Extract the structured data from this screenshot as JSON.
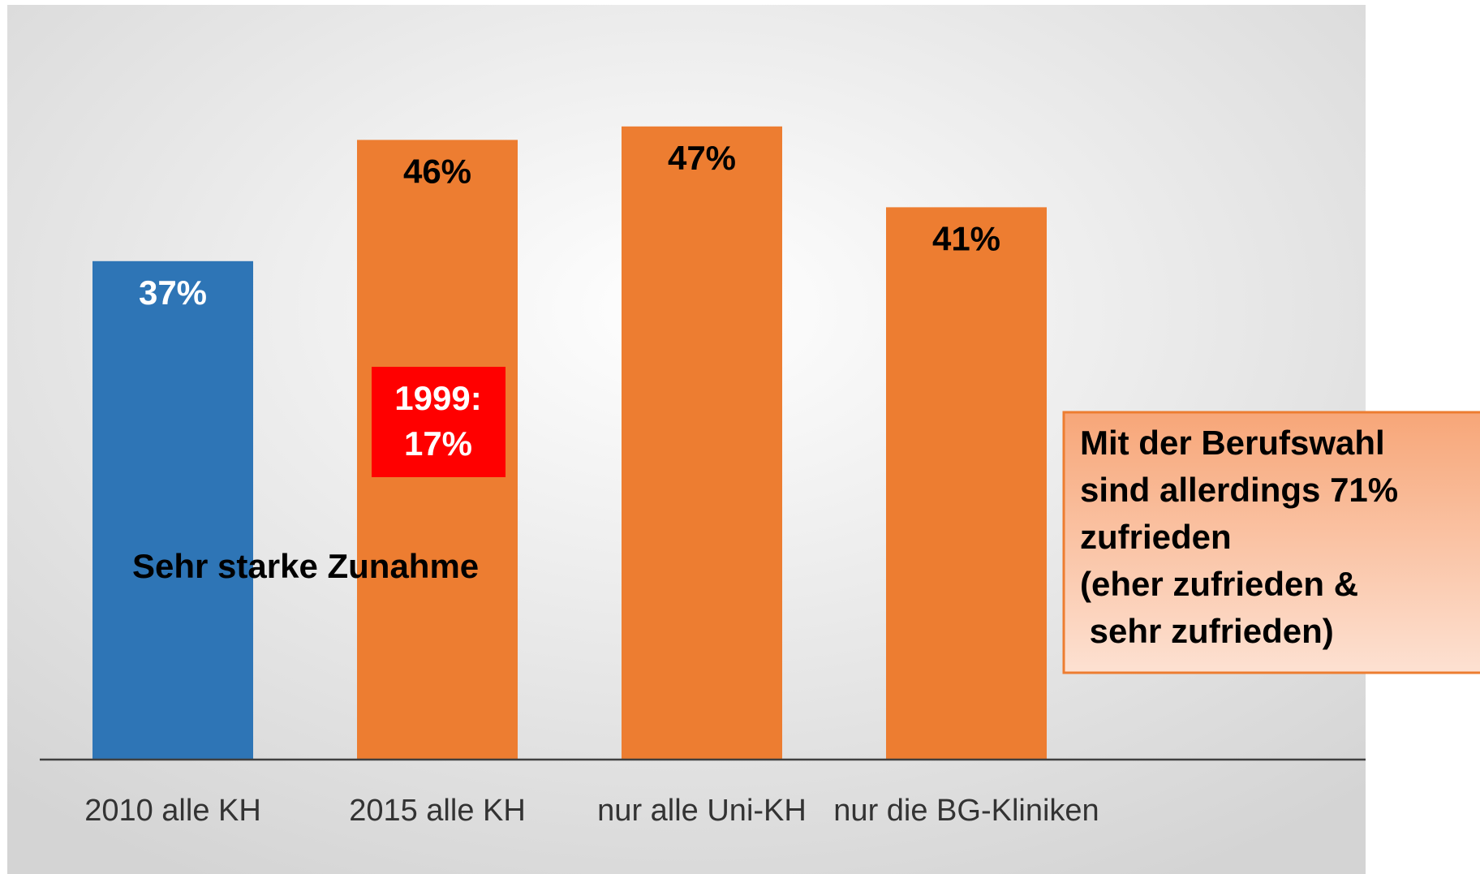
{
  "chart_data": {
    "type": "bar",
    "categories": [
      "2010 alle KH",
      "2015 alle KH",
      "nur alle Uni-KH",
      "nur die BG-Kliniken"
    ],
    "values": [
      37,
      46,
      47,
      41
    ],
    "value_labels": [
      "37%",
      "46%",
      "47%",
      "41%"
    ],
    "colors": [
      "#2e75b6",
      "#ed7d31",
      "#ed7d31",
      "#ed7d31"
    ],
    "ylim": [
      0,
      55
    ],
    "annotations": {
      "highlight": [
        "1999:",
        "17%"
      ],
      "note": "Sehr starke Zunahme",
      "callout": [
        "Mit der Berufswahl",
        "sind allerdings 71%",
        "zufrieden",
        "(eher zufrieden &",
        " sehr zufrieden)"
      ]
    }
  }
}
